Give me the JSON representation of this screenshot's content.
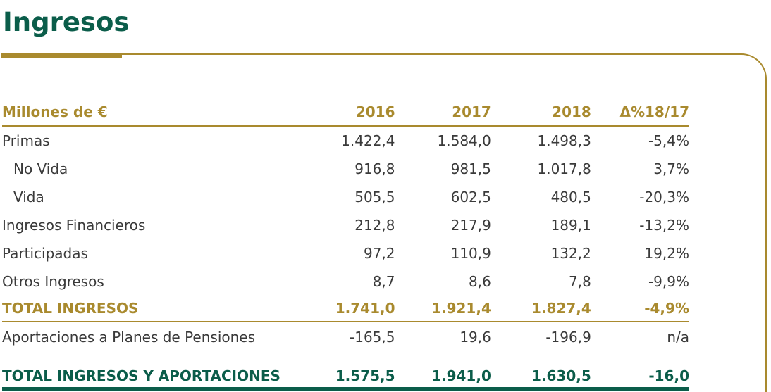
{
  "title": "Ingresos",
  "table": {
    "headers": [
      "Millones de €",
      "2016",
      "2017",
      "2018",
      "Δ%18/17"
    ],
    "rows": [
      {
        "label": "Primas",
        "v2016": "1.422,4",
        "v2017": "1.584,0",
        "v2018": "1.498,3",
        "delta": "-5,4%"
      },
      {
        "label": "No Vida",
        "v2016": "916,8",
        "v2017": "981,5",
        "v2018": "1.017,8",
        "delta": "3,7%"
      },
      {
        "label": "Vida",
        "v2016": "505,5",
        "v2017": "602,5",
        "v2018": "480,5",
        "delta": "-20,3%"
      },
      {
        "label": "Ingresos Financieros",
        "v2016": "212,8",
        "v2017": "217,9",
        "v2018": "189,1",
        "delta": "-13,2%"
      },
      {
        "label": "Participadas",
        "v2016": "97,2",
        "v2017": "110,9",
        "v2018": "132,2",
        "delta": "19,2%"
      },
      {
        "label": "Otros Ingresos",
        "v2016": "8,7",
        "v2017": "8,6",
        "v2018": "7,8",
        "delta": "-9,9%"
      },
      {
        "label": "TOTAL INGRESOS",
        "v2016": "1.741,0",
        "v2017": "1.921,4",
        "v2018": "1.827,4",
        "delta": "-4,9%"
      },
      {
        "label": "Aportaciones a Planes de Pensiones",
        "v2016": "-165,5",
        "v2017": "19,6",
        "v2018": "-196,9",
        "delta": "n/a"
      },
      {
        "label": "TOTAL INGRESOS Y APORTACIONES",
        "v2016": "1.575,5",
        "v2017": "1.941,0",
        "v2018": "1.630,5",
        "delta": "-16,0"
      }
    ]
  },
  "colors": {
    "green": "#0b5d4a",
    "gold": "#a98a2e",
    "text": "#3a3a3a"
  }
}
